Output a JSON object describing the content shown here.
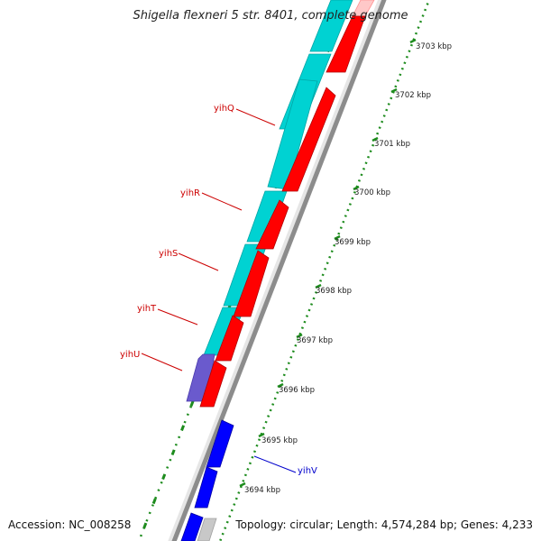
{
  "title": "Shigella flexneri 5 str. 8401, complete genome",
  "accession": "Accession: NC_008258",
  "summary": "Topology: circular; Length: 4,574,284 bp; Genes: 4,233",
  "colors": {
    "reverse_cds": "#00d2d2",
    "forward_cds": "#ff0000",
    "forward_cds_other": "#0000ff",
    "reverse_cds_other": "#6a5acd",
    "backbone": "#8c8c8c",
    "ruler": "#1e8c1e",
    "label_red": "#cc0000",
    "label_blue": "#0000cc"
  },
  "ticks": [
    {
      "label": "3703 kbp"
    },
    {
      "label": "3702 kbp"
    },
    {
      "label": "3701 kbp"
    },
    {
      "label": "3700 kbp"
    },
    {
      "label": "3699 kbp"
    },
    {
      "label": "3698 kbp"
    },
    {
      "label": "3697 kbp"
    },
    {
      "label": "3696 kbp"
    },
    {
      "label": "3695 kbp"
    },
    {
      "label": "3694 kbp"
    }
  ],
  "gene_labels": [
    {
      "name": "yihQ"
    },
    {
      "name": "yihR"
    },
    {
      "name": "yihS"
    },
    {
      "name": "yihT"
    },
    {
      "name": "yihU"
    },
    {
      "name": "yihV"
    }
  ]
}
